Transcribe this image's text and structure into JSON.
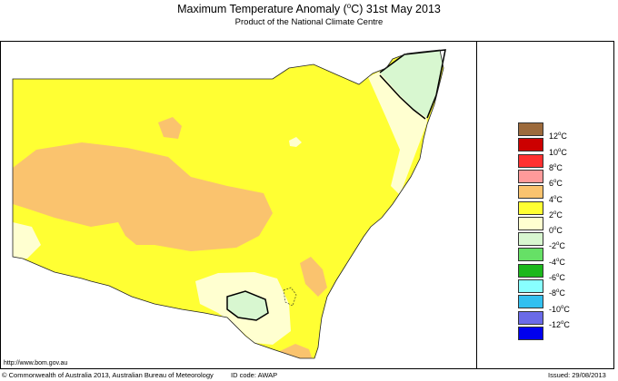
{
  "title": {
    "prefix": "Maximum Temperature Anomaly (",
    "sup": "o",
    "suffix": "C)  31st May 2013"
  },
  "subtitle": "Product of the National Climate Centre",
  "url": "http://www.bom.gov.au",
  "footer": {
    "copyright": "© Commonwealth of Australia 2013, Australian Bureau of Meteorology",
    "id_code": "ID code: AWAP",
    "issued": "Issued: 29/08/2013"
  },
  "legend": [
    {
      "label": "12",
      "color": "#9c6a3c"
    },
    {
      "label": "10",
      "color": "#cc0000"
    },
    {
      "label": "8",
      "color": "#ff3030"
    },
    {
      "label": "6",
      "color": "#ff9a9a"
    },
    {
      "label": "4",
      "color": "#fac36e"
    },
    {
      "label": "2",
      "color": "#ffff33"
    },
    {
      "label": "0",
      "color": "#ffffd0"
    },
    {
      "label": "-2",
      "color": "#d8f7d0"
    },
    {
      "label": "-4",
      "color": "#66e066"
    },
    {
      "label": "-6",
      "color": "#1cb81c"
    },
    {
      "label": "-8",
      "color": "#88ffff"
    },
    {
      "label": "-10",
      "color": "#33c0f0"
    },
    {
      "label": "-12",
      "color": "#6a6ae8"
    },
    {
      "label": "",
      "color": "#0000ee"
    }
  ],
  "legend_unit": "C",
  "legend_unit_sup": "o"
}
